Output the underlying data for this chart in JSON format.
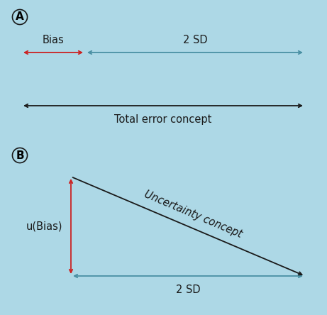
{
  "bg_color": "#add8e6",
  "label_A": "A",
  "label_B": "B",
  "bias_label": "Bias",
  "sd_label_top": "2 SD",
  "total_error_label": "Total error concept",
  "uncertainty_label": "Uncertainty concept",
  "ubias_label": "u(Bias)",
  "sd_label_bottom": "2 SD",
  "red_color": "#cc2222",
  "blue_color": "#4a90a4",
  "dark_color": "#1a1a1a",
  "arrow_lw": 1.3,
  "font_size": 10.5
}
